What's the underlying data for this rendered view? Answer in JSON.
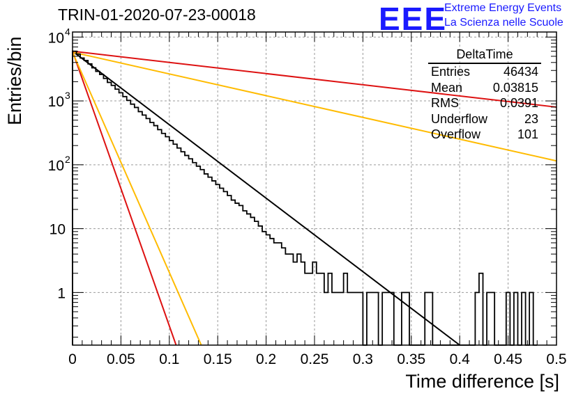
{
  "header": {
    "title": "TRIN-01-2020-07-23-00018",
    "logo": "EEE",
    "logo_line1": "Extreme Energy Events",
    "logo_line2": "La Scienza nelle Scuole"
  },
  "stats": {
    "title": "DeltaTime",
    "rows": [
      {
        "label": "Entries",
        "value": "46434"
      },
      {
        "label": "Mean",
        "value": "0.03815"
      },
      {
        "label": "RMS",
        "value": "0.0391"
      },
      {
        "label": "Underflow",
        "value": "23"
      },
      {
        "label": "Overflow",
        "value": "101"
      }
    ]
  },
  "chart_data": {
    "type": "histogram",
    "title": "TRIN-01-2020-07-23-00018",
    "xlabel": "Time difference [s]",
    "ylabel": "Entries/bin",
    "xlim": [
      0,
      0.5
    ],
    "ylim": [
      0.15,
      12000
    ],
    "yscale": "log",
    "grid": true,
    "x_ticks": [
      "0",
      "0.05",
      "0.1",
      "0.15",
      "0.2",
      "0.25",
      "0.3",
      "0.35",
      "0.4",
      "0.45",
      "0.5"
    ],
    "y_ticks": [
      "1",
      "10",
      "10^2",
      "10^3",
      "10^4"
    ],
    "bin_width": 0.004,
    "histogram": {
      "color": "#000000",
      "bins": [
        [
          0.0,
          6000
        ],
        [
          0.004,
          5400
        ],
        [
          0.008,
          4700
        ],
        [
          0.012,
          4300
        ],
        [
          0.016,
          3800
        ],
        [
          0.02,
          3300
        ],
        [
          0.024,
          2900
        ],
        [
          0.028,
          2600
        ],
        [
          0.032,
          2250
        ],
        [
          0.036,
          1950
        ],
        [
          0.04,
          1750
        ],
        [
          0.044,
          1530
        ],
        [
          0.048,
          1340
        ],
        [
          0.052,
          1170
        ],
        [
          0.056,
          1020
        ],
        [
          0.06,
          890
        ],
        [
          0.064,
          790
        ],
        [
          0.068,
          680
        ],
        [
          0.072,
          600
        ],
        [
          0.076,
          530
        ],
        [
          0.08,
          460
        ],
        [
          0.084,
          410
        ],
        [
          0.088,
          355
        ],
        [
          0.092,
          310
        ],
        [
          0.096,
          275
        ],
        [
          0.1,
          240
        ],
        [
          0.104,
          210
        ],
        [
          0.108,
          183
        ],
        [
          0.112,
          160
        ],
        [
          0.116,
          140
        ],
        [
          0.12,
          124
        ],
        [
          0.124,
          108
        ],
        [
          0.128,
          95
        ],
        [
          0.132,
          84
        ],
        [
          0.136,
          72
        ],
        [
          0.14,
          64
        ],
        [
          0.144,
          56
        ],
        [
          0.148,
          49
        ],
        [
          0.152,
          43
        ],
        [
          0.156,
          38
        ],
        [
          0.16,
          33
        ],
        [
          0.164,
          28
        ],
        [
          0.168,
          25
        ],
        [
          0.172,
          23
        ],
        [
          0.176,
          19
        ],
        [
          0.18,
          17
        ],
        [
          0.184,
          15
        ],
        [
          0.188,
          13
        ],
        [
          0.192,
          11
        ],
        [
          0.196,
          9
        ],
        [
          0.2,
          8
        ],
        [
          0.204,
          7
        ],
        [
          0.208,
          6
        ],
        [
          0.212,
          6
        ],
        [
          0.216,
          5
        ],
        [
          0.22,
          4
        ],
        [
          0.224,
          4
        ],
        [
          0.228,
          3
        ],
        [
          0.232,
          4
        ],
        [
          0.236,
          3
        ],
        [
          0.24,
          2
        ],
        [
          0.244,
          2
        ],
        [
          0.248,
          3
        ],
        [
          0.252,
          2
        ],
        [
          0.256,
          2
        ],
        [
          0.26,
          1
        ],
        [
          0.264,
          2
        ],
        [
          0.268,
          1
        ],
        [
          0.272,
          1
        ],
        [
          0.276,
          1
        ],
        [
          0.28,
          2
        ],
        [
          0.284,
          1
        ],
        [
          0.288,
          1
        ],
        [
          0.292,
          1
        ],
        [
          0.296,
          1
        ],
        [
          0.3,
          0
        ],
        [
          0.304,
          1
        ],
        [
          0.308,
          1
        ],
        [
          0.312,
          1
        ],
        [
          0.316,
          0
        ],
        [
          0.32,
          1
        ],
        [
          0.324,
          1
        ],
        [
          0.328,
          1
        ],
        [
          0.332,
          0
        ],
        [
          0.336,
          0
        ],
        [
          0.34,
          1
        ],
        [
          0.344,
          1
        ],
        [
          0.348,
          0
        ],
        [
          0.352,
          0
        ],
        [
          0.356,
          0
        ],
        [
          0.36,
          0
        ],
        [
          0.364,
          1
        ],
        [
          0.368,
          1
        ],
        [
          0.372,
          0
        ],
        [
          0.376,
          0
        ],
        [
          0.38,
          0
        ],
        [
          0.384,
          0
        ],
        [
          0.388,
          0
        ],
        [
          0.392,
          0
        ],
        [
          0.396,
          0
        ],
        [
          0.4,
          0
        ],
        [
          0.404,
          0
        ],
        [
          0.408,
          0
        ],
        [
          0.412,
          0
        ],
        [
          0.416,
          1
        ],
        [
          0.42,
          2
        ],
        [
          0.424,
          0
        ],
        [
          0.428,
          1
        ],
        [
          0.432,
          1
        ],
        [
          0.436,
          0
        ],
        [
          0.44,
          0
        ],
        [
          0.444,
          0
        ],
        [
          0.448,
          1
        ],
        [
          0.452,
          0
        ],
        [
          0.456,
          1
        ],
        [
          0.46,
          0
        ],
        [
          0.464,
          1
        ],
        [
          0.468,
          0
        ],
        [
          0.472,
          1
        ],
        [
          0.476,
          0
        ]
      ]
    },
    "fit_lines": [
      {
        "color": "#000000",
        "points": [
          [
            0.0,
            6000
          ],
          [
            0.4,
            0.15
          ]
        ]
      },
      {
        "color": "#dd1111",
        "points": [
          [
            0.0,
            6000
          ],
          [
            0.5,
            800
          ]
        ]
      },
      {
        "color": "#ffbb00",
        "points": [
          [
            0.0,
            5800
          ],
          [
            0.5,
            115
          ]
        ]
      },
      {
        "color": "#dd1111",
        "points": [
          [
            0.0,
            6000
          ],
          [
            0.107,
            0.15
          ]
        ]
      },
      {
        "color": "#ffbb00",
        "points": [
          [
            0.0,
            5800
          ],
          [
            0.133,
            0.15
          ]
        ]
      }
    ]
  }
}
